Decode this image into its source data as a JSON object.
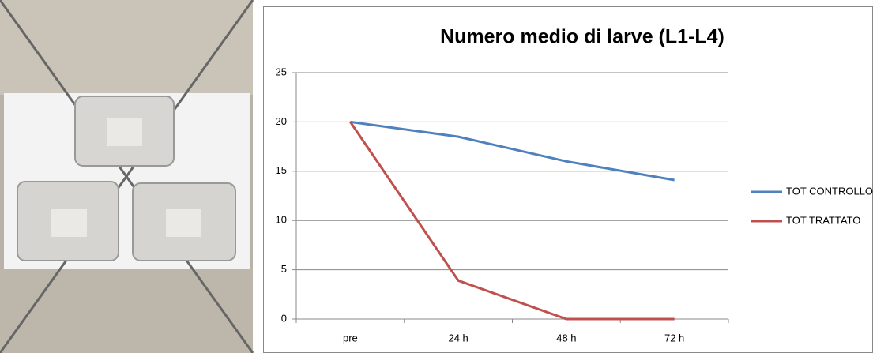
{
  "chart_data": {
    "type": "line",
    "title": "Numero medio di larve (L1-L4)",
    "categories": [
      "pre",
      "24 h",
      "48 h",
      "72 h"
    ],
    "series": [
      {
        "name": "TOT CONTROLLO",
        "color": "#4f81bd",
        "values": [
          20,
          18.5,
          16,
          14.1
        ]
      },
      {
        "name": "TOT TRATTATO",
        "color": "#c0504d",
        "values": [
          20,
          3.9,
          0,
          0
        ]
      }
    ],
    "ylim": [
      0,
      25
    ],
    "yticks": [
      0,
      5,
      10,
      15,
      20,
      25
    ],
    "grid": true,
    "legend": "right"
  }
}
